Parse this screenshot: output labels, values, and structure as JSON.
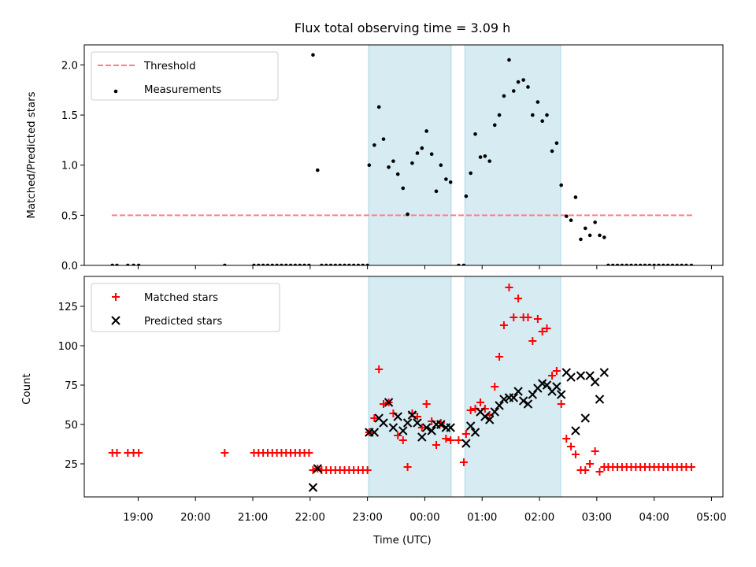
{
  "chart_data": [
    {
      "type": "scatter",
      "title": "Flux total observing time = 3.09 h",
      "xlabel": "",
      "ylabel": "Matched/Predicted stars",
      "x_unit": "hours (UTC, from 00:00; negative = previous day)",
      "xlim": [
        -5.94,
        5.2
      ],
      "ylim": [
        0,
        2.2
      ],
      "yticks": [
        0.0,
        0.5,
        1.0,
        1.5,
        2.0
      ],
      "ytick_labels": [
        "0.0",
        "0.5",
        "1.0",
        "1.5",
        "2.0"
      ],
      "shaded_intervals": [
        [
          -0.98,
          0.46
        ],
        [
          0.7,
          2.37
        ]
      ],
      "threshold": {
        "name": "Threshold",
        "value": 0.5,
        "x_range": [
          -5.46,
          4.67
        ],
        "color": "#ff7f7f"
      },
      "legend": [
        "Threshold",
        "Measurements"
      ],
      "legend_placement": "upper left",
      "series": [
        {
          "name": "Measurements",
          "color": "#000000",
          "points": [
            [
              -5.45,
              0
            ],
            [
              -5.37,
              0
            ],
            [
              -5.18,
              0
            ],
            [
              -5.08,
              0
            ],
            [
              -4.99,
              0
            ],
            [
              -3.49,
              0
            ],
            [
              -2.98,
              0
            ],
            [
              -2.9,
              0
            ],
            [
              -2.82,
              0
            ],
            [
              -2.74,
              0
            ],
            [
              -2.66,
              0
            ],
            [
              -2.58,
              0
            ],
            [
              -2.5,
              0
            ],
            [
              -2.42,
              0
            ],
            [
              -2.34,
              0
            ],
            [
              -2.26,
              0
            ],
            [
              -2.18,
              0
            ],
            [
              -2.1,
              0
            ],
            [
              -2.02,
              0
            ],
            [
              -1.95,
              2.1
            ],
            [
              -1.87,
              0.95
            ],
            [
              -1.8,
              0
            ],
            [
              -1.72,
              0
            ],
            [
              -1.64,
              0
            ],
            [
              -1.56,
              0
            ],
            [
              -1.48,
              0
            ],
            [
              -1.4,
              0
            ],
            [
              -1.32,
              0
            ],
            [
              -1.24,
              0
            ],
            [
              -1.16,
              0
            ],
            [
              -1.08,
              0
            ],
            [
              -1.0,
              0
            ],
            [
              -0.97,
              1.0
            ],
            [
              -0.88,
              1.2
            ],
            [
              -0.8,
              1.58
            ],
            [
              -0.72,
              1.26
            ],
            [
              -0.63,
              0.98
            ],
            [
              -0.55,
              1.04
            ],
            [
              -0.47,
              0.91
            ],
            [
              -0.38,
              0.77
            ],
            [
              -0.3,
              0.51
            ],
            [
              -0.22,
              1.02
            ],
            [
              -0.13,
              1.12
            ],
            [
              -0.05,
              1.17
            ],
            [
              0.03,
              1.34
            ],
            [
              0.12,
              1.11
            ],
            [
              0.2,
              0.74
            ],
            [
              0.28,
              1.0
            ],
            [
              0.37,
              0.86
            ],
            [
              0.45,
              0.83
            ],
            [
              0.59,
              0
            ],
            [
              0.68,
              0
            ],
            [
              0.72,
              0.69
            ],
            [
              0.8,
              0.92
            ],
            [
              0.88,
              1.31
            ],
            [
              0.97,
              1.08
            ],
            [
              1.05,
              1.09
            ],
            [
              1.13,
              1.04
            ],
            [
              1.22,
              1.4
            ],
            [
              1.3,
              1.5
            ],
            [
              1.38,
              1.69
            ],
            [
              1.47,
              2.05
            ],
            [
              1.55,
              1.74
            ],
            [
              1.63,
              1.83
            ],
            [
              1.72,
              1.85
            ],
            [
              1.8,
              1.78
            ],
            [
              1.88,
              1.5
            ],
            [
              1.97,
              1.63
            ],
            [
              2.05,
              1.44
            ],
            [
              2.13,
              1.5
            ],
            [
              2.22,
              1.14
            ],
            [
              2.3,
              1.22
            ],
            [
              2.38,
              0.8
            ],
            [
              2.47,
              0.49
            ],
            [
              2.55,
              0.45
            ],
            [
              2.63,
              0.68
            ],
            [
              2.72,
              0.26
            ],
            [
              2.8,
              0.37
            ],
            [
              2.88,
              0.3
            ],
            [
              2.97,
              0.43
            ],
            [
              3.05,
              0.3
            ],
            [
              3.13,
              0.28
            ],
            [
              3.2,
              0
            ],
            [
              3.28,
              0
            ],
            [
              3.36,
              0
            ],
            [
              3.44,
              0
            ],
            [
              3.52,
              0
            ],
            [
              3.6,
              0
            ],
            [
              3.68,
              0
            ],
            [
              3.76,
              0
            ],
            [
              3.84,
              0
            ],
            [
              3.92,
              0
            ],
            [
              4.0,
              0
            ],
            [
              4.08,
              0
            ],
            [
              4.16,
              0
            ],
            [
              4.24,
              0
            ],
            [
              4.32,
              0
            ],
            [
              4.4,
              0
            ],
            [
              4.48,
              0
            ],
            [
              4.56,
              0
            ],
            [
              4.65,
              0
            ]
          ]
        }
      ]
    },
    {
      "type": "scatter",
      "title": "",
      "xlabel": "Time (UTC)",
      "ylabel": "Count",
      "x_unit": "hours (UTC, from 00:00; negative = previous day)",
      "xlim": [
        -5.94,
        5.2
      ],
      "ylim": [
        4,
        144
      ],
      "yticks": [
        25,
        50,
        75,
        100,
        125
      ],
      "ytick_labels": [
        "25",
        "50",
        "75",
        "100",
        "125"
      ],
      "xticks": [
        -5,
        -4,
        -3,
        -2,
        -1,
        0,
        1,
        2,
        3,
        4,
        5
      ],
      "xtick_labels": [
        "19:00",
        "20:00",
        "21:00",
        "22:00",
        "23:00",
        "00:00",
        "01:00",
        "02:00",
        "03:00",
        "04:00",
        "05:00"
      ],
      "shaded_intervals": [
        [
          -0.98,
          0.46
        ],
        [
          0.7,
          2.37
        ]
      ],
      "legend": [
        "Matched stars",
        "Predicted stars"
      ],
      "legend_placement": "upper left",
      "series": [
        {
          "name": "Matched stars",
          "marker": "plus",
          "color": "#ff0000",
          "points": [
            [
              -5.45,
              32
            ],
            [
              -5.37,
              32
            ],
            [
              -5.18,
              32
            ],
            [
              -5.08,
              32
            ],
            [
              -4.99,
              32
            ],
            [
              -3.49,
              32
            ],
            [
              -2.98,
              32
            ],
            [
              -2.9,
              32
            ],
            [
              -2.82,
              32
            ],
            [
              -2.74,
              32
            ],
            [
              -2.66,
              32
            ],
            [
              -2.58,
              32
            ],
            [
              -2.5,
              32
            ],
            [
              -2.42,
              32
            ],
            [
              -2.34,
              32
            ],
            [
              -2.26,
              32
            ],
            [
              -2.18,
              32
            ],
            [
              -2.1,
              32
            ],
            [
              -2.02,
              32
            ],
            [
              -1.95,
              21
            ],
            [
              -1.87,
              22
            ],
            [
              -1.8,
              21
            ],
            [
              -1.72,
              21
            ],
            [
              -1.64,
              21
            ],
            [
              -1.56,
              21
            ],
            [
              -1.48,
              21
            ],
            [
              -1.4,
              21
            ],
            [
              -1.32,
              21
            ],
            [
              -1.24,
              21
            ],
            [
              -1.16,
              21
            ],
            [
              -1.08,
              21
            ],
            [
              -1.0,
              21
            ],
            [
              -0.97,
              45
            ],
            [
              -0.88,
              54
            ],
            [
              -0.8,
              85
            ],
            [
              -0.72,
              63
            ],
            [
              -0.63,
              64
            ],
            [
              -0.55,
              57
            ],
            [
              -0.47,
              43
            ],
            [
              -0.38,
              40
            ],
            [
              -0.3,
              23
            ],
            [
              -0.22,
              57
            ],
            [
              -0.13,
              55
            ],
            [
              -0.05,
              48
            ],
            [
              0.03,
              63
            ],
            [
              0.12,
              52
            ],
            [
              0.2,
              37
            ],
            [
              0.28,
              51
            ],
            [
              0.37,
              41
            ],
            [
              0.45,
              40
            ],
            [
              0.59,
              40
            ],
            [
              0.68,
              26
            ],
            [
              0.72,
              44
            ],
            [
              0.8,
              59
            ],
            [
              0.88,
              60
            ],
            [
              0.97,
              64
            ],
            [
              1.05,
              60
            ],
            [
              1.13,
              56
            ],
            [
              1.22,
              74
            ],
            [
              1.3,
              93
            ],
            [
              1.38,
              113
            ],
            [
              1.47,
              137
            ],
            [
              1.55,
              118
            ],
            [
              1.63,
              130
            ],
            [
              1.72,
              118
            ],
            [
              1.8,
              118
            ],
            [
              1.88,
              103
            ],
            [
              1.97,
              117
            ],
            [
              2.05,
              109
            ],
            [
              2.13,
              111
            ],
            [
              2.22,
              81
            ],
            [
              2.3,
              84
            ],
            [
              2.38,
              63
            ],
            [
              2.47,
              41
            ],
            [
              2.55,
              36
            ],
            [
              2.63,
              31
            ],
            [
              2.72,
              21
            ],
            [
              2.8,
              21
            ],
            [
              2.88,
              25
            ],
            [
              2.97,
              33
            ],
            [
              3.05,
              20
            ],
            [
              3.13,
              23
            ],
            [
              3.2,
              23
            ],
            [
              3.28,
              23
            ],
            [
              3.36,
              23
            ],
            [
              3.44,
              23
            ],
            [
              3.52,
              23
            ],
            [
              3.6,
              23
            ],
            [
              3.68,
              23
            ],
            [
              3.76,
              23
            ],
            [
              3.84,
              23
            ],
            [
              3.92,
              23
            ],
            [
              4.0,
              23
            ],
            [
              4.08,
              23
            ],
            [
              4.16,
              23
            ],
            [
              4.24,
              23
            ],
            [
              4.32,
              23
            ],
            [
              4.4,
              23
            ],
            [
              4.48,
              23
            ],
            [
              4.56,
              23
            ],
            [
              4.65,
              23
            ]
          ]
        },
        {
          "name": "Predicted stars",
          "marker": "x",
          "color": "#000000",
          "points": [
            [
              -1.95,
              10
            ],
            [
              -1.87,
              22
            ],
            [
              -0.97,
              45
            ],
            [
              -0.88,
              45
            ],
            [
              -0.8,
              54
            ],
            [
              -0.72,
              51
            ],
            [
              -0.63,
              64
            ],
            [
              -0.55,
              48
            ],
            [
              -0.47,
              55
            ],
            [
              -0.38,
              46
            ],
            [
              -0.3,
              51
            ],
            [
              -0.22,
              56
            ],
            [
              -0.13,
              51
            ],
            [
              -0.05,
              42
            ],
            [
              0.03,
              48
            ],
            [
              0.12,
              46
            ],
            [
              0.2,
              50
            ],
            [
              0.28,
              50
            ],
            [
              0.37,
              48
            ],
            [
              0.45,
              48
            ],
            [
              0.72,
              38
            ],
            [
              0.8,
              49
            ],
            [
              0.88,
              45
            ],
            [
              0.97,
              58
            ],
            [
              1.05,
              55
            ],
            [
              1.13,
              53
            ],
            [
              1.22,
              58
            ],
            [
              1.3,
              62
            ],
            [
              1.38,
              66
            ],
            [
              1.47,
              67
            ],
            [
              1.55,
              67
            ],
            [
              1.63,
              71
            ],
            [
              1.72,
              65
            ],
            [
              1.8,
              63
            ],
            [
              1.88,
              69
            ],
            [
              1.97,
              73
            ],
            [
              2.05,
              76
            ],
            [
              2.13,
              75
            ],
            [
              2.22,
              71
            ],
            [
              2.3,
              74
            ],
            [
              2.38,
              69
            ],
            [
              2.47,
              83
            ],
            [
              2.55,
              80
            ],
            [
              2.63,
              46
            ],
            [
              2.72,
              81
            ],
            [
              2.8,
              54
            ],
            [
              2.88,
              81
            ],
            [
              2.97,
              77
            ],
            [
              3.05,
              66
            ],
            [
              3.13,
              83
            ]
          ]
        }
      ]
    }
  ]
}
